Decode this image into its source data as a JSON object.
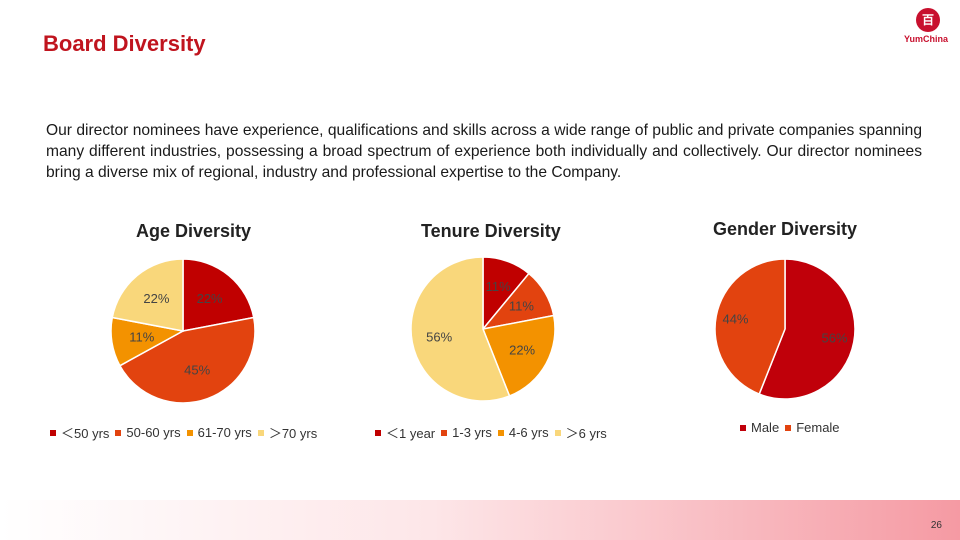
{
  "page": {
    "title": "Board Diversity",
    "logo_text": "YumChina",
    "logo_glyph": "百",
    "intro": "Our director nominees have experience, qualifications and skills across a wide range of public and private companies spanning many different industries, possessing a broad spectrum of experience both individually and collectively. Our director nominees bring a diverse mix of regional, industry and professional expertise to the Company.",
    "page_number": "26"
  },
  "chart_data": [
    {
      "type": "pie",
      "title": "Age Diversity",
      "categories": [
        "＜50 yrs",
        "50-60 yrs",
        "61-70 yrs",
        "＞70 yrs"
      ],
      "values": [
        22,
        45,
        11,
        22
      ],
      "labels": [
        "22%",
        "45%",
        "11%",
        "22%"
      ],
      "colors": [
        "#c00000",
        "#e2430f",
        "#f39200",
        "#f9d77b"
      ],
      "legend_position": "bottom"
    },
    {
      "type": "pie",
      "title": "Tenure Diversity",
      "categories": [
        "＜1 year",
        "1-3 yrs",
        "4-6 yrs",
        "＞6 yrs"
      ],
      "values": [
        11,
        11,
        22,
        56
      ],
      "labels": [
        "11%",
        "11%",
        "22%",
        "56%"
      ],
      "colors": [
        "#c00000",
        "#e2430f",
        "#f39200",
        "#f9d77b"
      ],
      "legend_position": "bottom"
    },
    {
      "type": "pie",
      "title": "Gender Diversity",
      "categories": [
        "Male",
        "Female"
      ],
      "values": [
        56,
        44
      ],
      "labels": [
        "56%",
        "44%"
      ],
      "colors": [
        "#c0000a",
        "#e2430f"
      ],
      "legend_position": "bottom"
    }
  ]
}
